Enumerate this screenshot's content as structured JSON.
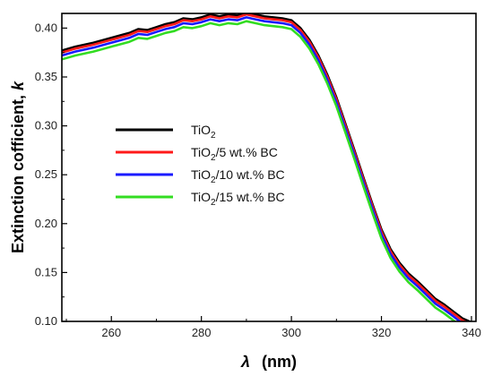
{
  "chart_data": {
    "type": "line",
    "xlabel_symbol": "λ",
    "xlabel_unit": "(nm)",
    "ylabel_main": "Extinction cofficient, ",
    "ylabel_symbol": "k",
    "xlim": [
      249,
      341
    ],
    "ylim": [
      0.1,
      0.415
    ],
    "xticks": [
      260,
      280,
      300,
      320,
      340
    ],
    "yticks": [
      0.1,
      0.15,
      0.2,
      0.25,
      0.3,
      0.35,
      0.4
    ],
    "grid": false,
    "legend_position": "left-middle",
    "base_x": [
      249,
      252,
      256,
      260,
      264,
      266,
      268,
      270,
      272,
      274,
      276,
      278,
      280,
      282,
      284,
      286,
      288,
      290,
      292,
      294,
      296,
      298,
      300,
      302,
      304,
      306,
      308,
      310,
      312,
      314,
      316,
      318,
      320,
      322,
      324,
      326,
      328,
      330,
      332,
      334,
      336,
      338,
      340,
      341
    ],
    "base_y": [
      0.375,
      0.379,
      0.383,
      0.388,
      0.393,
      0.397,
      0.396,
      0.399,
      0.402,
      0.404,
      0.408,
      0.407,
      0.409,
      0.412,
      0.41,
      0.412,
      0.411,
      0.414,
      0.412,
      0.41,
      0.409,
      0.408,
      0.406,
      0.398,
      0.386,
      0.37,
      0.35,
      0.327,
      0.3,
      0.273,
      0.245,
      0.218,
      0.192,
      0.172,
      0.158,
      0.147,
      0.139,
      0.13,
      0.121,
      0.115,
      0.108,
      0.101,
      0.097,
      0.096
    ],
    "series": [
      {
        "name_base": "TiO",
        "name_sub": "2",
        "name_rest": "",
        "color": "#000000",
        "offset": 0.002
      },
      {
        "name_base": "TiO",
        "name_sub": "2",
        "name_rest": "/5 wt.% BC",
        "color": "#ff1a1a",
        "offset": 0.0
      },
      {
        "name_base": "TiO",
        "name_sub": "2",
        "name_rest": "/10 wt.% BC",
        "color": "#1a1aff",
        "offset": -0.003
      },
      {
        "name_base": "TiO",
        "name_sub": "2",
        "name_rest": "/15 wt.% BC",
        "color": "#33dd22",
        "offset": -0.007
      }
    ]
  }
}
